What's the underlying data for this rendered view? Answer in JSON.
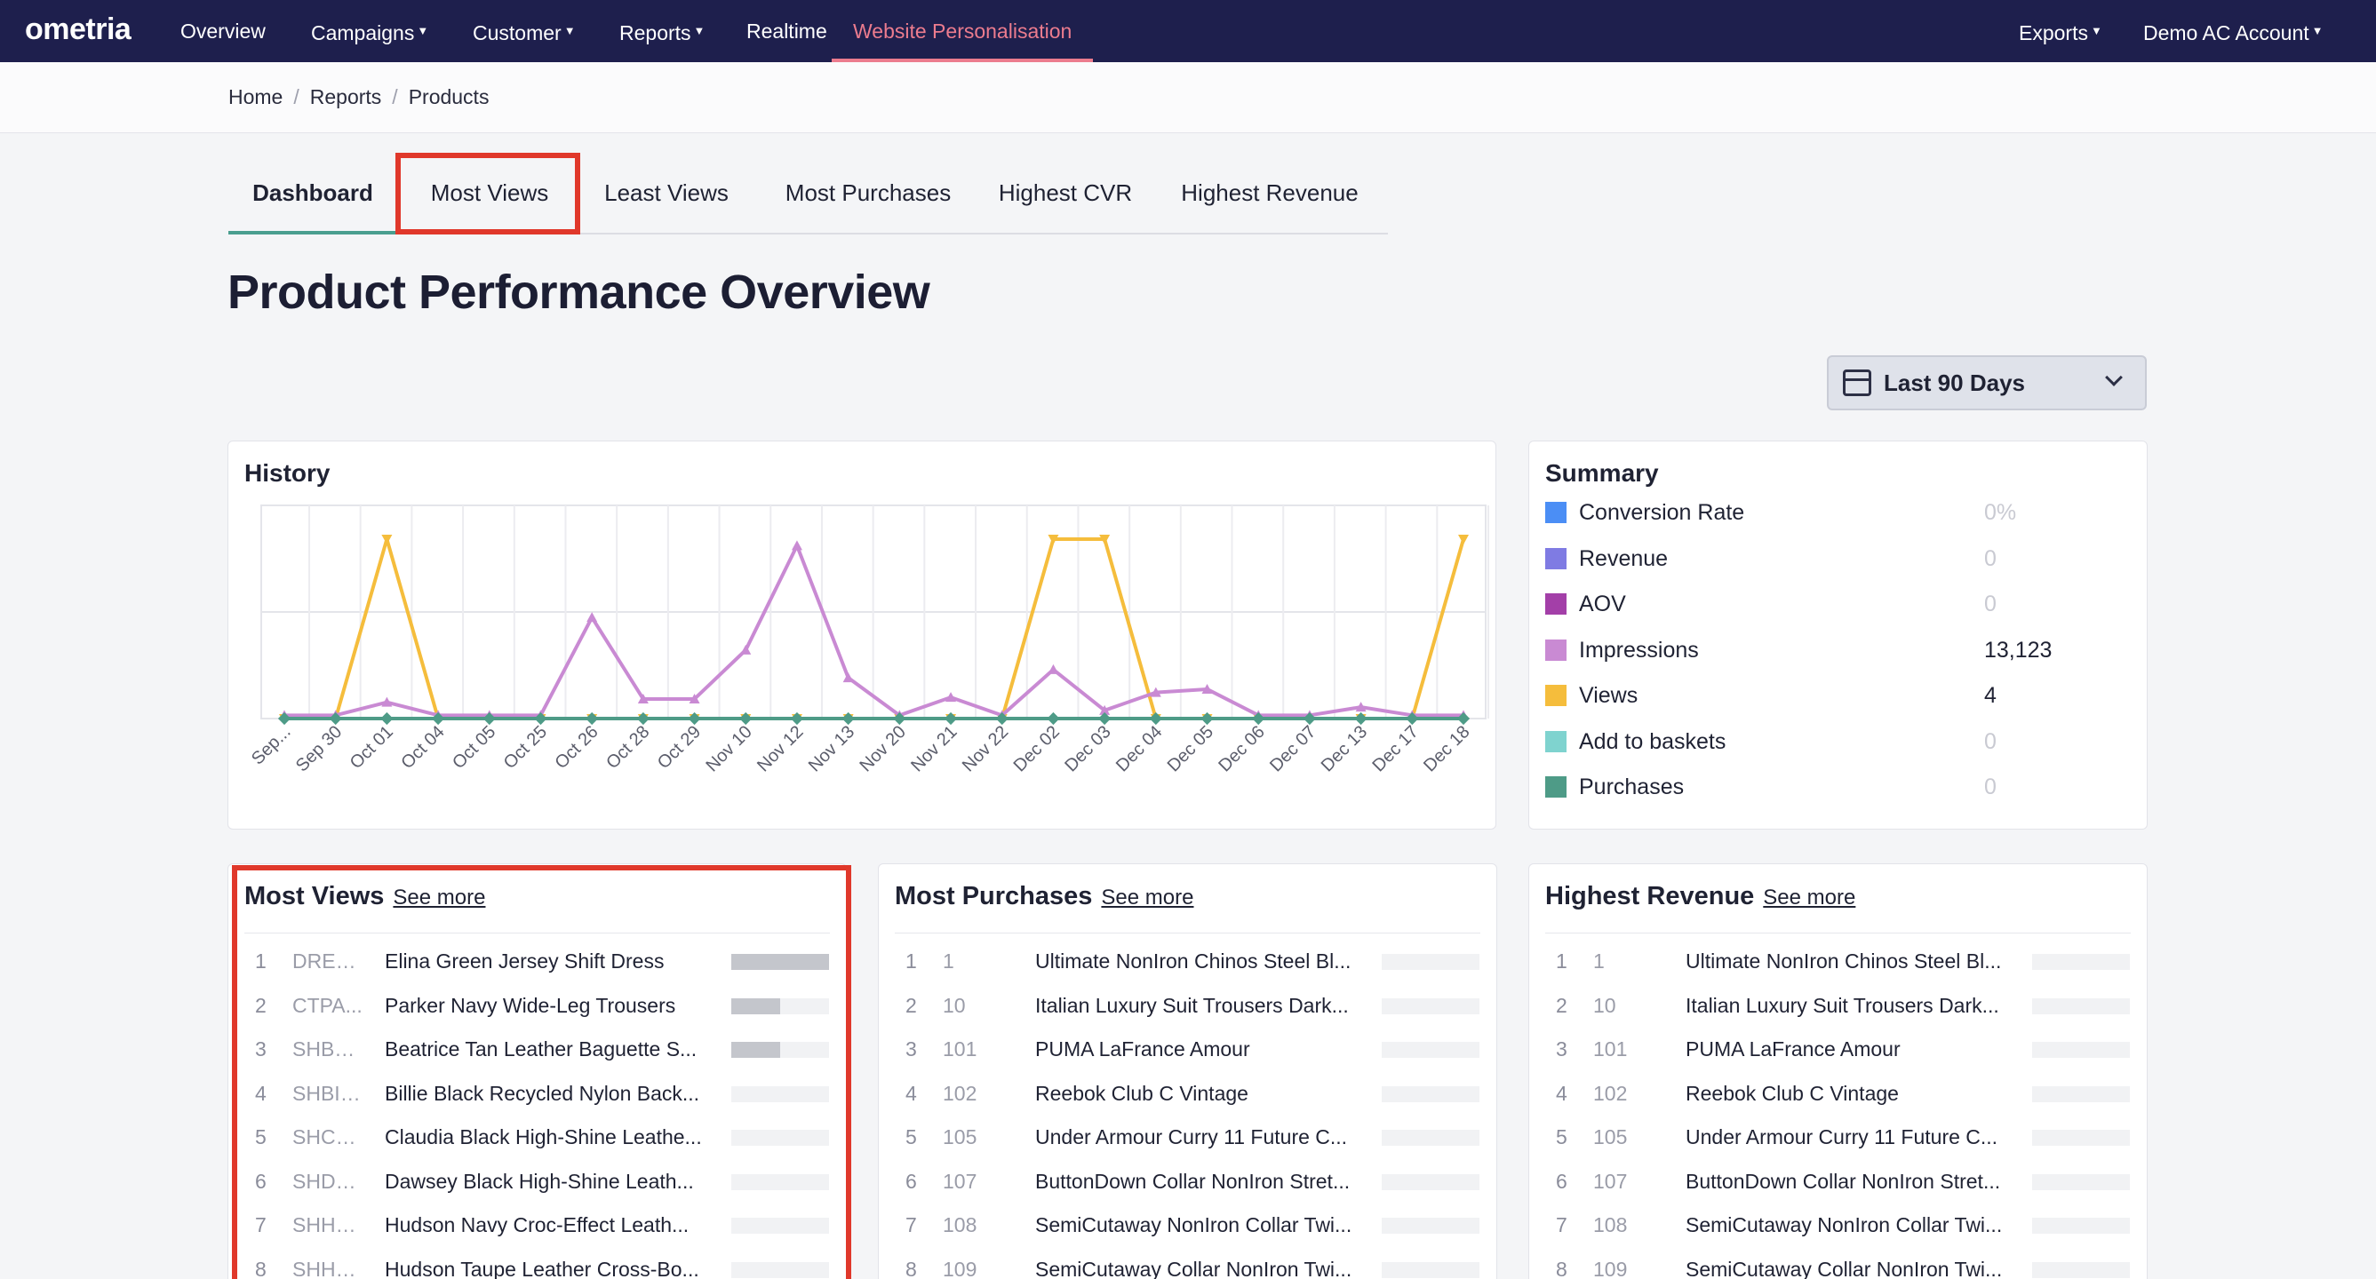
{
  "nav": {
    "logo": "ometria",
    "items": [
      "Overview",
      "Campaigns",
      "Customer",
      "Reports",
      "Realtime",
      "Website Personalisation"
    ],
    "right_items": [
      "Exports",
      "Demo AC Account"
    ]
  },
  "breadcrumb": [
    "Home",
    "Reports",
    "Products"
  ],
  "tabs": [
    "Dashboard",
    "Most Views",
    "Least Views",
    "Most Purchases",
    "Highest CVR",
    "Highest Revenue"
  ],
  "active_tab": "Dashboard",
  "page_title": "Product Performance Overview",
  "date_range": "Last 90 Days",
  "history": {
    "title": "History",
    "chart_data": {
      "type": "line",
      "x": [
        "Sep...",
        "Sep 30",
        "Oct 01",
        "Oct 04",
        "Oct 05",
        "Oct 25",
        "Oct 26",
        "Oct 28",
        "Oct 29",
        "Nov 10",
        "Nov 12",
        "Nov 13",
        "Nov 20",
        "Nov 21",
        "Nov 22",
        "Dec 02",
        "Dec 03",
        "Dec 04",
        "Dec 05",
        "Dec 06",
        "Dec 07",
        "Dec 13",
        "Dec 17",
        "Dec 18"
      ],
      "series": [
        {
          "name": "Views",
          "color": "#f5bd3c",
          "values": [
            0,
            0,
            1,
            0,
            0,
            0,
            0,
            0,
            0,
            0,
            0,
            0,
            0,
            0,
            0,
            1,
            1,
            0,
            0,
            0,
            0,
            0,
            0,
            1
          ]
        },
        {
          "name": "Impressions",
          "color": "#c98ad3",
          "values": [
            20,
            20,
            100,
            20,
            20,
            20,
            620,
            120,
            120,
            420,
            1060,
            250,
            20,
            130,
            20,
            300,
            50,
            160,
            180,
            20,
            20,
            70,
            20,
            20
          ]
        },
        {
          "name": "Purchases",
          "color": "#4e9b87",
          "values": [
            0,
            0,
            0,
            0,
            0,
            0,
            0,
            0,
            0,
            0,
            0,
            0,
            0,
            0,
            0,
            0,
            0,
            0,
            0,
            0,
            0,
            0,
            0,
            0
          ]
        }
      ],
      "grid": true
    }
  },
  "summary": {
    "title": "Summary",
    "rows": [
      {
        "label": "Conversion Rate",
        "value": "0%",
        "color": "#4b8ef5",
        "muted": true
      },
      {
        "label": "Revenue",
        "value": "0",
        "color": "#7f7be3",
        "muted": true
      },
      {
        "label": "AOV",
        "value": "0",
        "color": "#a33fa8",
        "muted": true
      },
      {
        "label": "Impressions",
        "value": "13,123",
        "color": "#c98ad3",
        "muted": false
      },
      {
        "label": "Views",
        "value": "4",
        "color": "#f5bd3c",
        "muted": false
      },
      {
        "label": "Add to baskets",
        "value": "0",
        "color": "#7fd3cf",
        "muted": true
      },
      {
        "label": "Purchases",
        "value": "0",
        "color": "#4e9b87",
        "muted": true
      }
    ]
  },
  "see_more": "See more",
  "most_views": {
    "title": "Most Views",
    "rows": [
      {
        "rank": "1",
        "sku": "DRELI...",
        "name": "Elina Green Jersey Shift Dress",
        "bar": 1.0
      },
      {
        "rank": "2",
        "sku": "CTPA...",
        "name": "Parker Navy Wide-Leg Trousers",
        "bar": 0.5
      },
      {
        "rank": "3",
        "sku": "SHBE...",
        "name": "Beatrice Tan Leather Baguette S...",
        "bar": 0.5
      },
      {
        "rank": "4",
        "sku": "SHBIL...",
        "name": "Billie Black Recycled Nylon Back...",
        "bar": 0
      },
      {
        "rank": "5",
        "sku": "SHCL...",
        "name": "Claudia Black High-Shine Leathe...",
        "bar": 0
      },
      {
        "rank": "6",
        "sku": "SHDA...",
        "name": "Dawsey Black High-Shine Leath...",
        "bar": 0
      },
      {
        "rank": "7",
        "sku": "SHHU...",
        "name": "Hudson Navy Croc-Effect Leath...",
        "bar": 0
      },
      {
        "rank": "8",
        "sku": "SHHU...",
        "name": "Hudson Taupe Leather Cross-Bo...",
        "bar": 0
      }
    ]
  },
  "most_purchases": {
    "title": "Most Purchases",
    "rows": [
      {
        "rank": "1",
        "sku": "1",
        "name": "Ultimate NonIron Chinos Steel Bl...",
        "bar": 0
      },
      {
        "rank": "2",
        "sku": "10",
        "name": "Italian Luxury Suit Trousers Dark...",
        "bar": 0
      },
      {
        "rank": "3",
        "sku": "101",
        "name": "PUMA LaFrance Amour",
        "bar": 0
      },
      {
        "rank": "4",
        "sku": "102",
        "name": "Reebok Club C Vintage",
        "bar": 0
      },
      {
        "rank": "5",
        "sku": "105",
        "name": "Under Armour Curry 11 Future C...",
        "bar": 0
      },
      {
        "rank": "6",
        "sku": "107",
        "name": "ButtonDown Collar NonIron Stret...",
        "bar": 0
      },
      {
        "rank": "7",
        "sku": "108",
        "name": "SemiCutaway NonIron Collar Twi...",
        "bar": 0
      },
      {
        "rank": "8",
        "sku": "109",
        "name": "SemiCutaway Collar NonIron Twi...",
        "bar": 0
      }
    ]
  },
  "highest_revenue": {
    "title": "Highest Revenue",
    "rows": [
      {
        "rank": "1",
        "sku": "1",
        "name": "Ultimate NonIron Chinos Steel Bl...",
        "bar": 0
      },
      {
        "rank": "2",
        "sku": "10",
        "name": "Italian Luxury Suit Trousers Dark...",
        "bar": 0
      },
      {
        "rank": "3",
        "sku": "101",
        "name": "PUMA LaFrance Amour",
        "bar": 0
      },
      {
        "rank": "4",
        "sku": "102",
        "name": "Reebok Club C Vintage",
        "bar": 0
      },
      {
        "rank": "5",
        "sku": "105",
        "name": "Under Armour Curry 11 Future C...",
        "bar": 0
      },
      {
        "rank": "6",
        "sku": "107",
        "name": "ButtonDown Collar NonIron Stret...",
        "bar": 0
      },
      {
        "rank": "7",
        "sku": "108",
        "name": "SemiCutaway NonIron Collar Twi...",
        "bar": 0
      },
      {
        "rank": "8",
        "sku": "109",
        "name": "SemiCutaway Collar NonIron Twi...",
        "bar": 0
      }
    ]
  }
}
